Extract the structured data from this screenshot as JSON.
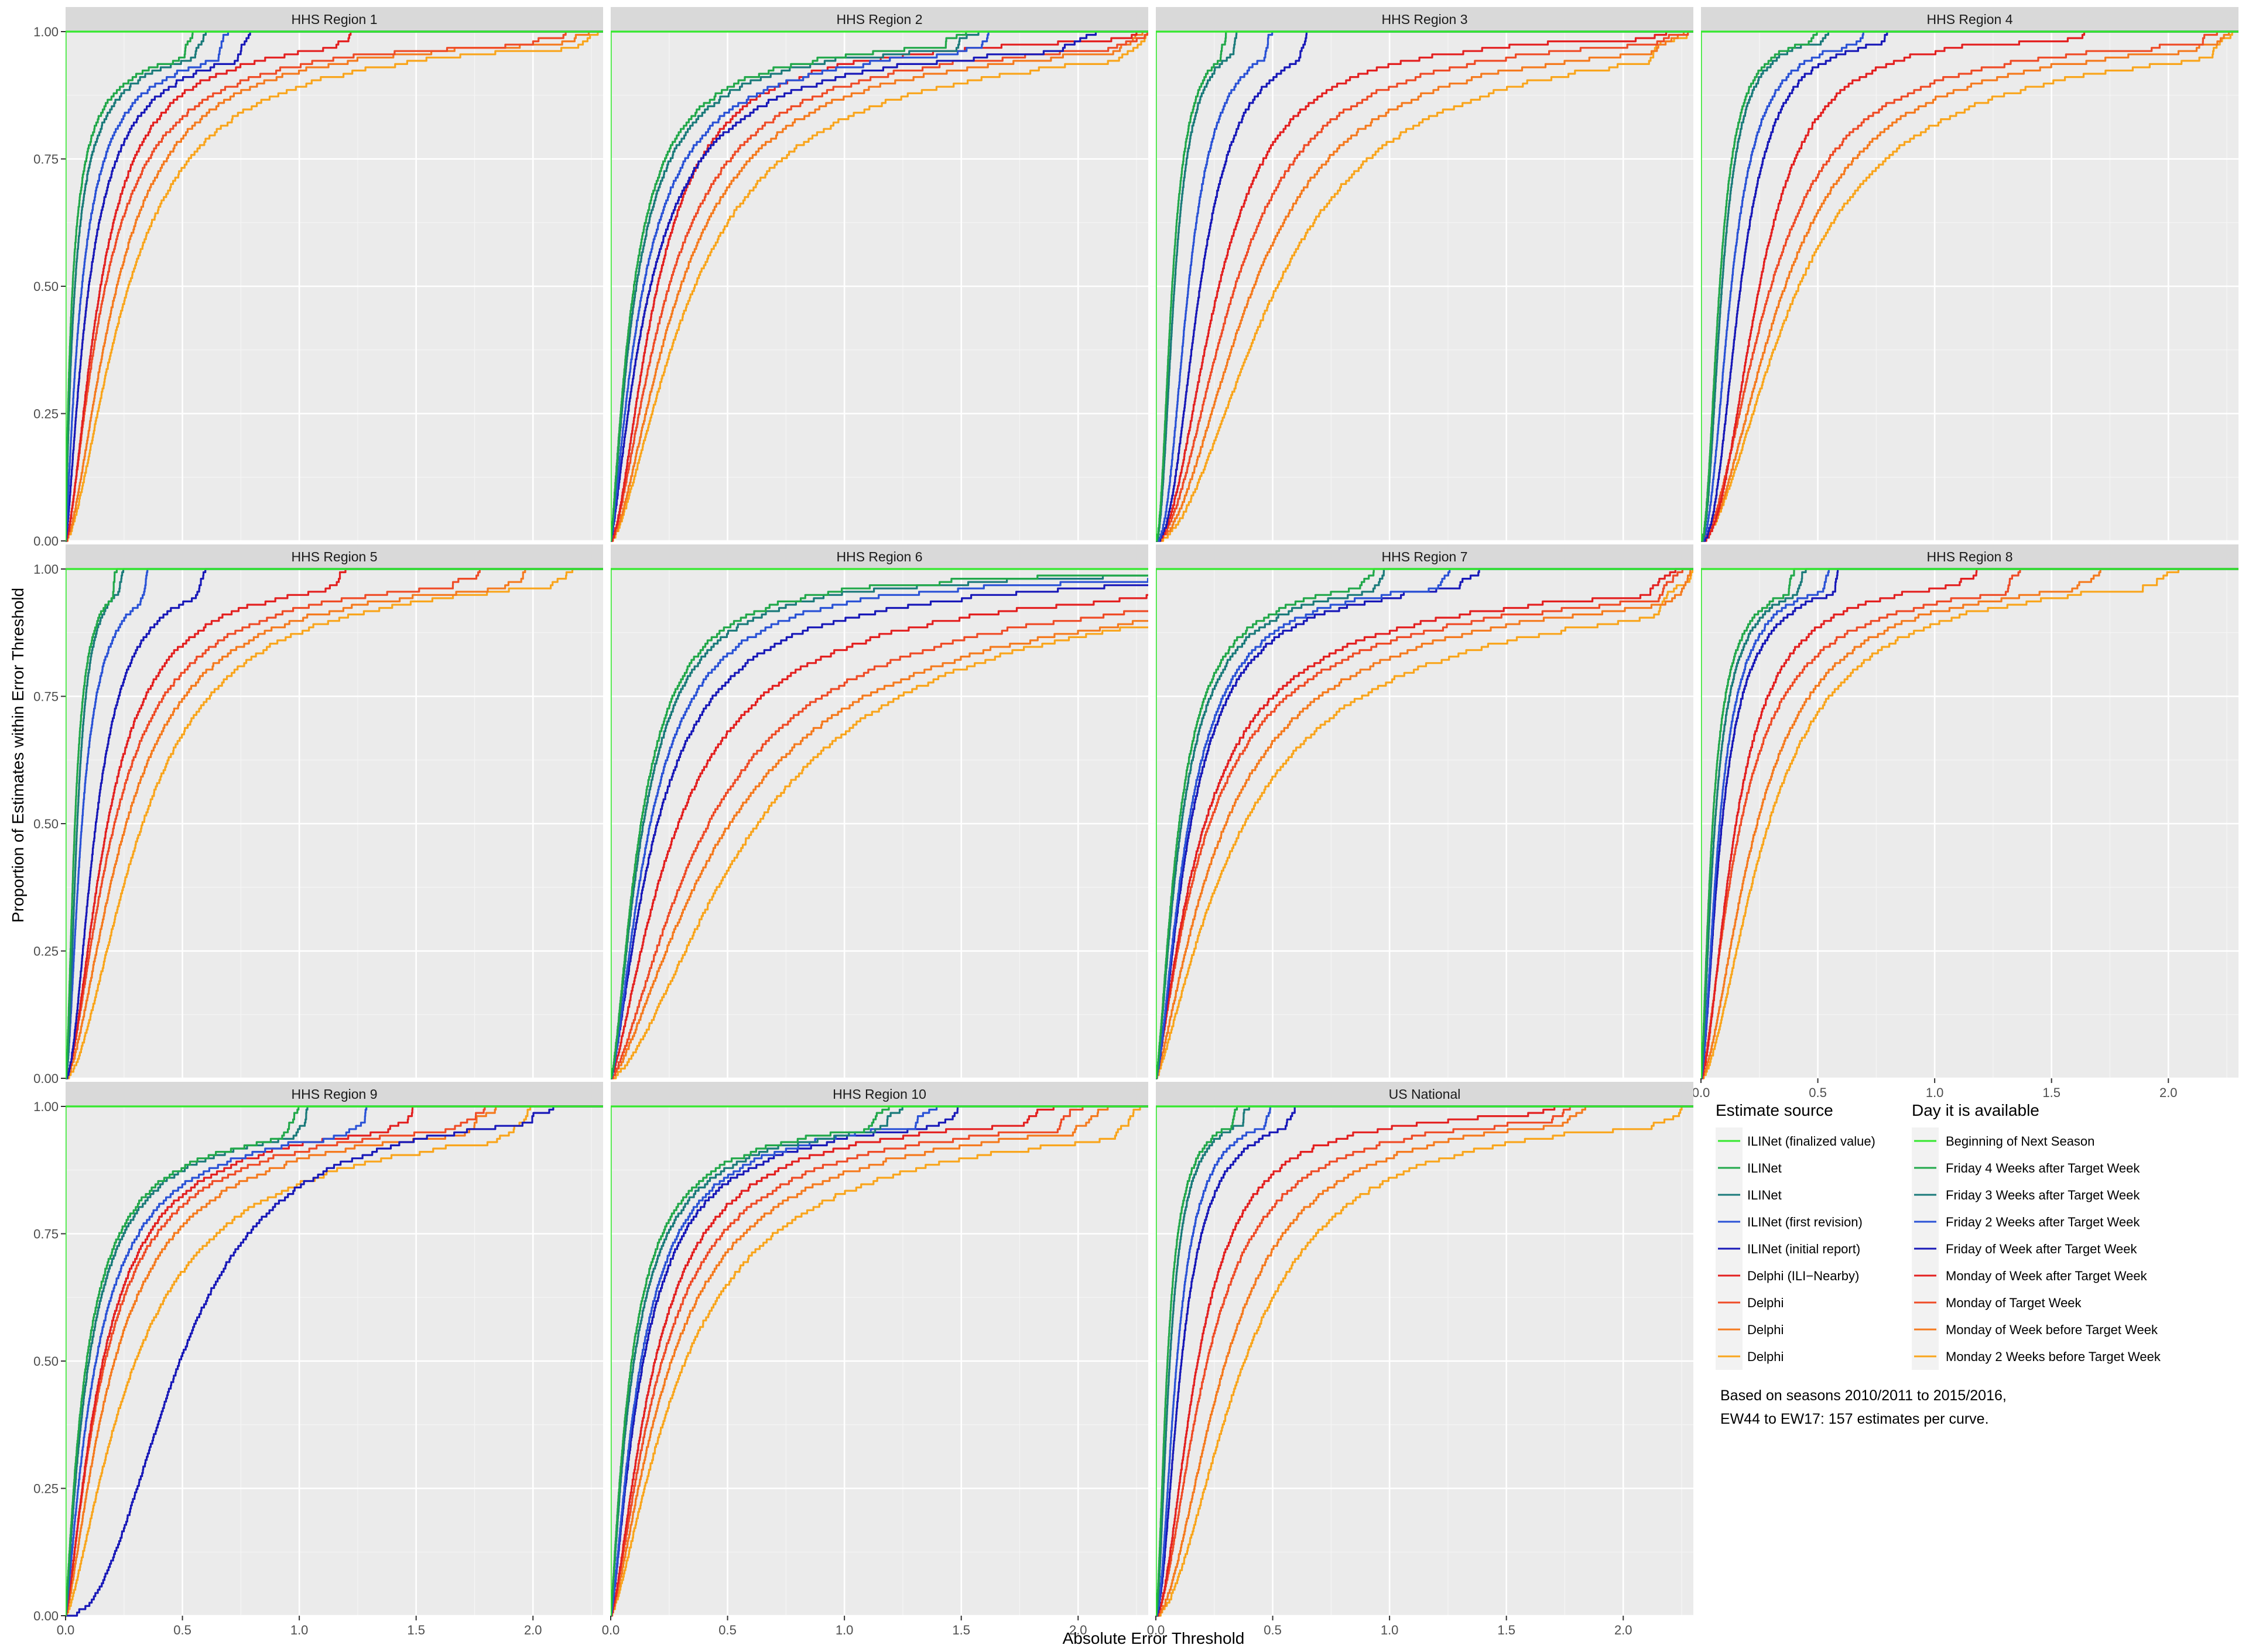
{
  "chart_data": {
    "type": "line",
    "xlabel": "Absolute Error Threshold",
    "ylabel": "Proportion of Estimates within Error Threshold",
    "xlim": [
      0,
      2.3
    ],
    "ylim": [
      0,
      1
    ],
    "x_ticks": [
      "0.0",
      "0.5",
      "1.0",
      "1.5",
      "2.0"
    ],
    "x_tick_values": [
      0,
      0.5,
      1.0,
      1.5,
      2.0
    ],
    "y_ticks": [
      "0.00",
      "0.25",
      "0.50",
      "0.75",
      "1.00"
    ],
    "y_tick_values": [
      0,
      0.25,
      0.5,
      0.75,
      1.0
    ],
    "grid": true,
    "legend_placement": "bottom-right",
    "legend": {
      "source_title": "Estimate source",
      "day_title": "Day it is available",
      "entries": [
        {
          "source": "ILINet (finalized value)",
          "day": "Beginning of Next Season",
          "color": "#34e82e"
        },
        {
          "source": "ILINet",
          "day": "Friday 4 Weeks after Target Week",
          "color": "#21a84a"
        },
        {
          "source": "ILINet",
          "day": "Friday 3 Weeks after Target Week",
          "color": "#1a7a7a"
        },
        {
          "source": "ILINet (first revision)",
          "day": "Friday 2 Weeks after Target Week",
          "color": "#2a52d6"
        },
        {
          "source": "ILINet (initial report)",
          "day": "Friday of Week after Target Week",
          "color": "#1818b8"
        },
        {
          "source": "Delphi (ILI−Nearby)",
          "day": "Monday of Week after Target Week",
          "color": "#e32020"
        },
        {
          "source": "Delphi",
          "day": "Monday of Target Week",
          "color": "#ef4b26"
        },
        {
          "source": "Delphi",
          "day": "Monday of Week before Target Week",
          "color": "#f57a1e"
        },
        {
          "source": "Delphi",
          "day": "Monday 2 Weeks before Target Week",
          "color": "#f9a51c"
        }
      ]
    },
    "note_lines": [
      "Based on seasons 2010/2011 to 2015/2016,",
      "EW44 to EW17: 157 estimates per curve."
    ],
    "panels": [
      {
        "title": "HHS Region 1",
        "medians": [
          0.0,
          0.03,
          0.04,
          0.07,
          0.1,
          0.15,
          0.17,
          0.22,
          0.27
        ],
        "p90": [
          0.0,
          0.26,
          0.3,
          0.4,
          0.48,
          0.58,
          0.75,
          0.85,
          1.05
        ],
        "max": [
          0.0,
          0.55,
          0.6,
          0.7,
          0.8,
          1.25,
          2.15,
          2.3,
          2.3
        ]
      },
      {
        "title": "HHS Region 2",
        "medians": [
          0.0,
          0.1,
          0.11,
          0.14,
          0.17,
          0.2,
          0.25,
          0.3,
          0.36
        ],
        "p90": [
          0.0,
          0.55,
          0.6,
          0.75,
          0.9,
          0.75,
          1.05,
          1.2,
          1.5
        ],
        "max": [
          0.0,
          1.55,
          1.6,
          1.65,
          2.1,
          2.25,
          2.3,
          2.3,
          2.3
        ]
      },
      {
        "title": "HHS Region 3",
        "medians": [
          0.0,
          0.07,
          0.08,
          0.14,
          0.19,
          0.27,
          0.34,
          0.42,
          0.52
        ],
        "p90": [
          0.0,
          0.2,
          0.22,
          0.35,
          0.48,
          0.8,
          1.05,
          1.3,
          1.6
        ],
        "max": [
          0.0,
          0.3,
          0.35,
          0.5,
          0.65,
          2.2,
          2.3,
          2.3,
          2.3
        ]
      },
      {
        "title": "HHS Region 4",
        "medians": [
          0.0,
          0.08,
          0.09,
          0.13,
          0.17,
          0.25,
          0.3,
          0.36,
          0.42
        ],
        "p90": [
          0.0,
          0.22,
          0.24,
          0.35,
          0.42,
          0.65,
          1.0,
          1.2,
          1.5
        ],
        "max": [
          0.0,
          0.5,
          0.55,
          0.7,
          0.8,
          1.7,
          2.3,
          2.3,
          2.3
        ]
      },
      {
        "title": "HHS Region 5",
        "medians": [
          0.0,
          0.04,
          0.05,
          0.07,
          0.13,
          0.18,
          0.21,
          0.26,
          0.33
        ],
        "p90": [
          0.0,
          0.14,
          0.15,
          0.25,
          0.4,
          0.65,
          0.85,
          1.0,
          1.15
        ],
        "max": [
          0.0,
          0.22,
          0.25,
          0.35,
          0.6,
          1.2,
          1.8,
          2.0,
          2.2
        ]
      },
      {
        "title": "HHS Region 6",
        "medians": [
          0.0,
          0.13,
          0.14,
          0.17,
          0.2,
          0.29,
          0.42,
          0.51,
          0.63
        ],
        "p90": [
          0.0,
          0.55,
          0.6,
          0.75,
          0.98,
          1.45,
          1.95,
          2.35,
          2.45
        ]
      },
      {
        "title": "HHS Region 7",
        "medians": [
          0.0,
          0.1,
          0.11,
          0.14,
          0.15,
          0.21,
          0.23,
          0.3,
          0.38
        ],
        "p90": [
          0.0,
          0.45,
          0.5,
          0.6,
          0.65,
          1.2,
          1.4,
          1.65,
          2.05
        ],
        "max": [
          0.0,
          0.95,
          1.0,
          1.3,
          1.4,
          2.25,
          2.3,
          2.3,
          2.3
        ]
      },
      {
        "title": "HHS Region 8",
        "medians": [
          0.0,
          0.05,
          0.06,
          0.08,
          0.09,
          0.15,
          0.17,
          0.24,
          0.29
        ],
        "p90": [
          0.0,
          0.22,
          0.25,
          0.3,
          0.35,
          0.55,
          0.75,
          0.9,
          1.05
        ],
        "max": [
          0.0,
          0.4,
          0.45,
          0.55,
          0.6,
          1.2,
          1.4,
          1.75,
          2.05
        ]
      },
      {
        "title": "HHS Region 9",
        "medians": [
          0.0,
          0.09,
          0.1,
          0.13,
          0.49,
          0.16,
          0.17,
          0.21,
          0.3
        ],
        "p90": [
          0.0,
          0.6,
          0.62,
          0.75,
          1.25,
          0.8,
          0.9,
          1.05,
          1.4
        ],
        "max": [
          0.0,
          1.0,
          1.05,
          1.3,
          2.1,
          1.5,
          1.8,
          1.85,
          2.0
        ]
      },
      {
        "title": "HHS Region 10",
        "medians": [
          0.0,
          0.09,
          0.1,
          0.13,
          0.14,
          0.19,
          0.22,
          0.26,
          0.32
        ],
        "p90": [
          0.0,
          0.55,
          0.6,
          0.65,
          0.7,
          0.85,
          1.05,
          1.25,
          1.55
        ],
        "max": [
          0.0,
          1.2,
          1.25,
          1.4,
          1.5,
          1.9,
          2.05,
          2.15,
          2.3
        ]
      },
      {
        "title": "US National",
        "medians": [
          0.0,
          0.05,
          0.06,
          0.09,
          0.11,
          0.18,
          0.22,
          0.3,
          0.38
        ],
        "p90": [
          0.0,
          0.18,
          0.2,
          0.28,
          0.35,
          0.6,
          0.8,
          1.0,
          1.25
        ],
        "max": [
          0.0,
          0.35,
          0.4,
          0.5,
          0.6,
          1.75,
          1.8,
          1.85,
          2.3
        ]
      }
    ]
  }
}
